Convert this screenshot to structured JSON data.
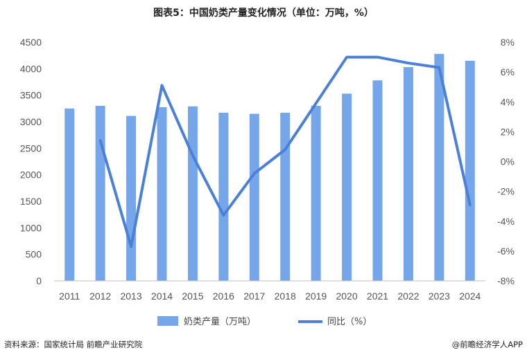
{
  "title": "图表5：中国奶类产量变化情况（单位：万吨，%）",
  "source": "资料来源：国家统计局  前瞻产业研究院",
  "credit": "@前瞻经济学人APP",
  "colors": {
    "bar": "#76A6EA",
    "line": "#4A80D8",
    "axis": "#bfbfbf"
  },
  "chart_data": {
    "type": "bar",
    "categories": [
      "2011",
      "2012",
      "2013",
      "2014",
      "2015",
      "2016",
      "2017",
      "2018",
      "2019",
      "2020",
      "2021",
      "2022",
      "2023",
      "2024"
    ],
    "series": [
      {
        "name": "奶类产量（万吨）",
        "type": "bar",
        "axis": "left",
        "values": [
          3250,
          3300,
          3110,
          3275,
          3290,
          3170,
          3150,
          3170,
          3300,
          3530,
          3780,
          4030,
          4280,
          4150
        ]
      },
      {
        "name": "同比（%）",
        "type": "line",
        "axis": "right",
        "values": [
          null,
          1.4,
          -5.7,
          5.1,
          0.4,
          -3.6,
          -0.8,
          0.8,
          3.9,
          7.0,
          7.0,
          6.6,
          6.3,
          -2.9
        ]
      }
    ],
    "y_left": {
      "ylim": [
        0,
        4500
      ],
      "ticks": [
        0,
        500,
        1000,
        1500,
        2000,
        2500,
        3000,
        3500,
        4000,
        4500
      ]
    },
    "y_right": {
      "ylim": [
        -8,
        8
      ],
      "ticks": [
        "-8%",
        "-6%",
        "-4%",
        "-2%",
        "0%",
        "2%",
        "4%",
        "6%",
        "8%"
      ]
    },
    "grid": false,
    "legend_position": "bottom"
  }
}
